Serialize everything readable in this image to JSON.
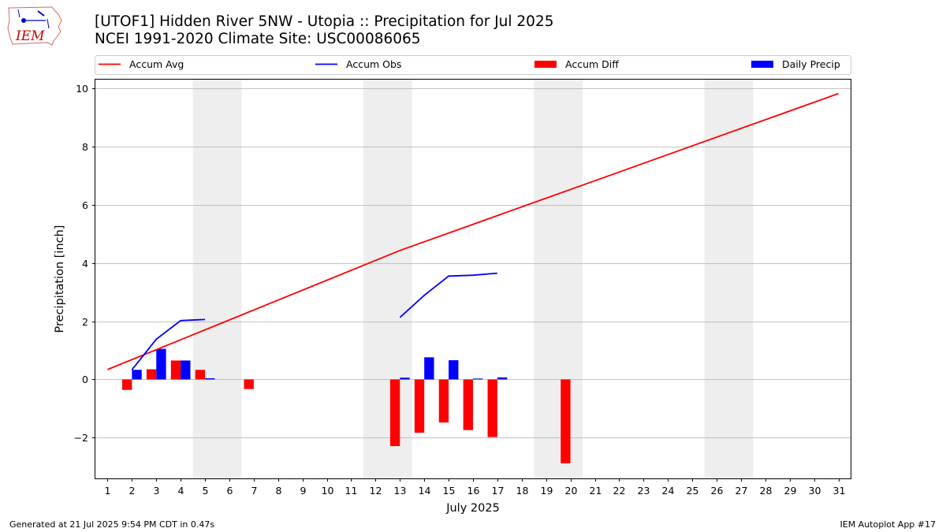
{
  "header": {
    "title_line1": "[UTOF1] Hidden River 5NW - Utopia :: Precipitation for Jul 2025",
    "title_line2": "NCEI 1991-2020 Climate Site: USC00086065"
  },
  "logo": {
    "text": "IEM",
    "icon": "iem-iowa-logo"
  },
  "footer": {
    "generated": "Generated at 21 Jul 2025 9:54 PM CDT in 0.47s",
    "app": "IEM Autoplot App #17"
  },
  "chart_data": {
    "type": "bar",
    "xlabel": "July 2025",
    "ylabel": "Precipitation [inch]",
    "xlim": [
      0.5,
      31.5
    ],
    "ylim": [
      -3.4,
      10.3
    ],
    "yticks": [
      -2,
      0,
      2,
      4,
      6,
      8,
      10
    ],
    "ytick_labels": [
      "−2",
      "0",
      "2",
      "4",
      "6",
      "8",
      "10"
    ],
    "xticks": [
      1,
      2,
      3,
      4,
      5,
      6,
      7,
      8,
      9,
      10,
      11,
      12,
      13,
      14,
      15,
      16,
      17,
      18,
      19,
      20,
      21,
      22,
      23,
      24,
      25,
      26,
      27,
      28,
      29,
      30,
      31
    ],
    "grid": "horizontal",
    "legend_placement": "top",
    "weekend_shading": [
      [
        4.5,
        6.5
      ],
      [
        11.5,
        13.5
      ],
      [
        18.5,
        20.5
      ],
      [
        25.5,
        27.5
      ]
    ],
    "colors": {
      "avg": "#ff0000",
      "obs": "#0000ff",
      "diff": "#ff0000",
      "daily": "#0000ff",
      "shade": "#eeeeee",
      "grid": "#b0b0b0"
    },
    "series": [
      {
        "name": "Accum Avg",
        "kind": "line",
        "color": "#ff0000",
        "x": [
          1,
          13,
          31
        ],
        "values": [
          0.34,
          4.43,
          9.82
        ]
      },
      {
        "name": "Accum Obs",
        "kind": "line",
        "color": "#0000ff",
        "segments": [
          {
            "x": [
              2,
              3,
              4,
              5
            ],
            "values": [
              0.33,
              1.38,
              2.02,
              2.06
            ]
          },
          {
            "x": [
              13,
              14,
              15,
              16,
              17
            ],
            "values": [
              2.13,
              2.89,
              3.55,
              3.58,
              3.65
            ]
          }
        ]
      },
      {
        "name": "Accum Diff",
        "kind": "bar",
        "color": "#ff0000",
        "x": [
          2,
          3,
          4,
          5,
          7,
          13,
          14,
          15,
          16,
          17,
          20
        ],
        "values": [
          -0.36,
          0.35,
          0.65,
          0.33,
          -0.33,
          -2.29,
          -1.83,
          -1.48,
          -1.74,
          -1.98,
          -2.88
        ]
      },
      {
        "name": "Daily Precip",
        "kind": "bar",
        "color": "#0000ff",
        "x": [
          2,
          3,
          4,
          5,
          13,
          14,
          15,
          16,
          17
        ],
        "values": [
          0.33,
          1.05,
          0.65,
          0.04,
          0.06,
          0.76,
          0.66,
          0.03,
          0.07
        ]
      }
    ]
  }
}
